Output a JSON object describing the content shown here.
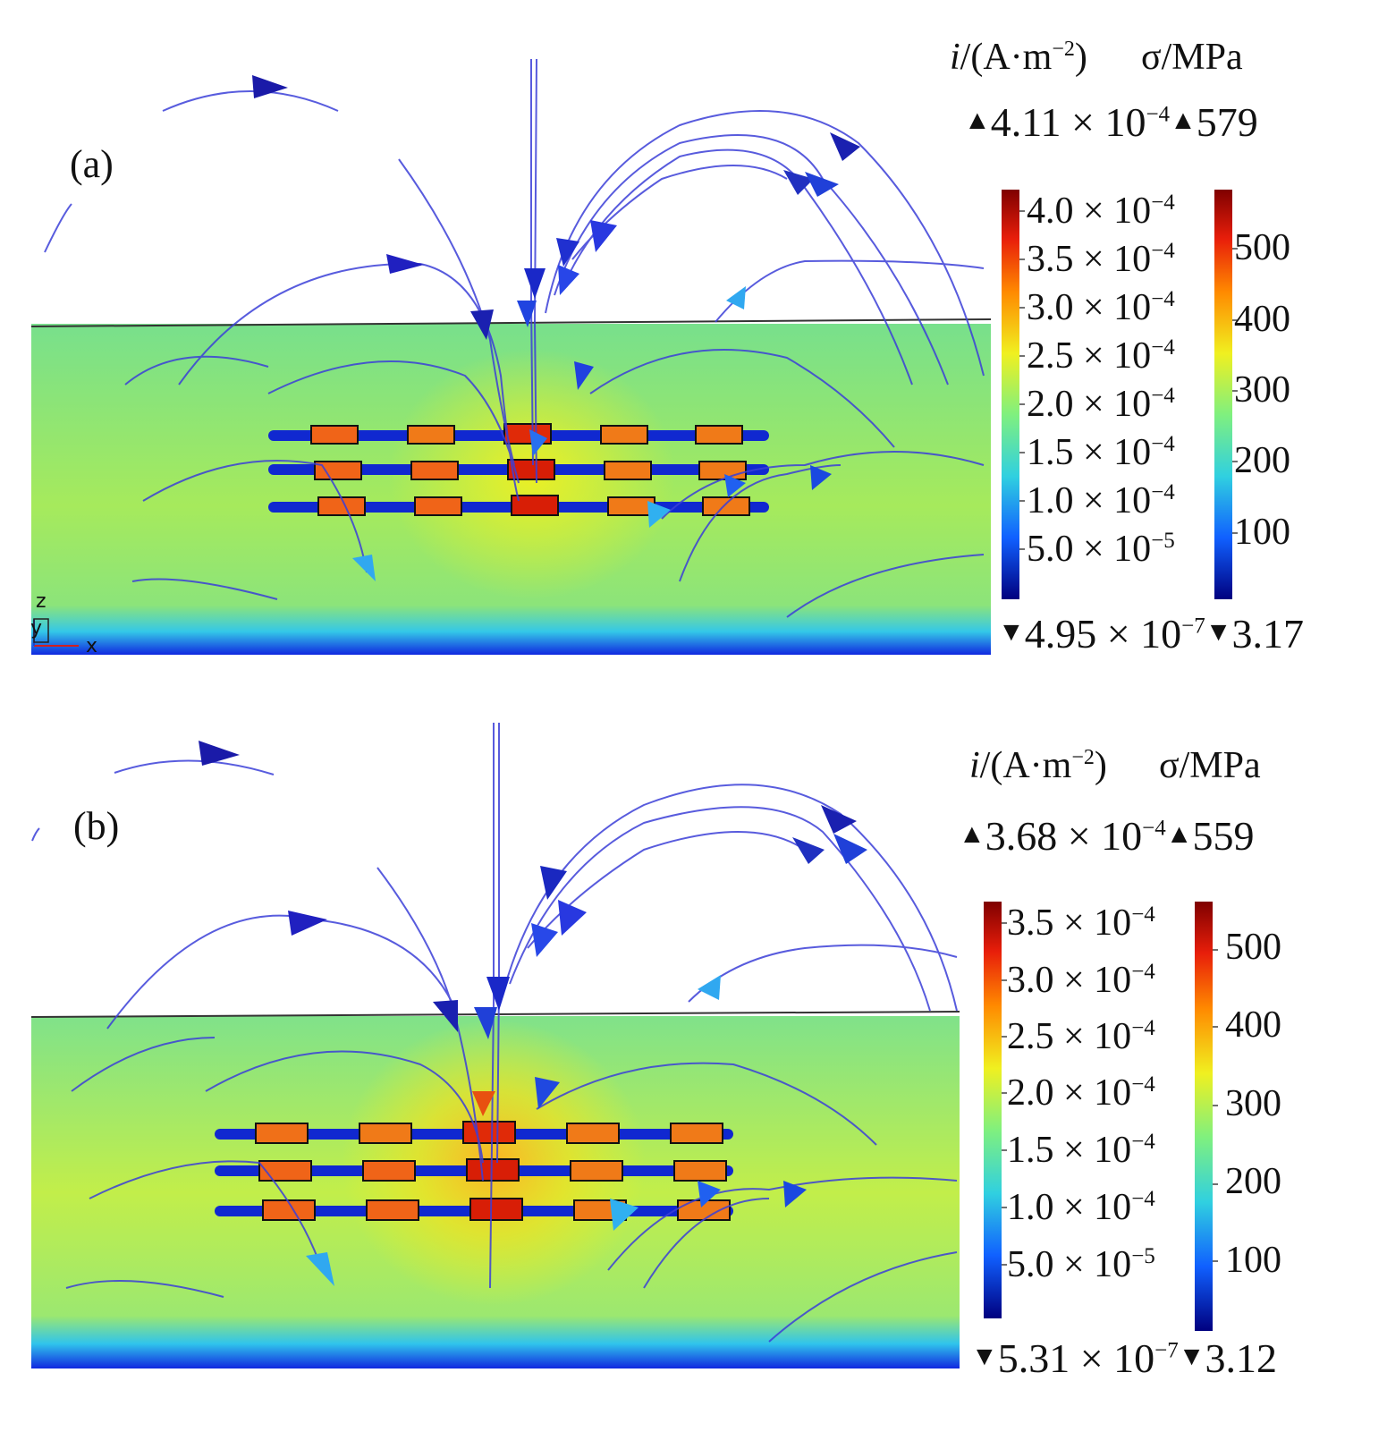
{
  "panels": [
    {
      "letter": "(a)",
      "current_density": {
        "symbol": "i",
        "unit": "/(A·m",
        "exp": "−2",
        "close": ")",
        "max_mantissa": "4.11",
        "max_exp": "−4",
        "min_mantissa": "4.95",
        "min_exp": "−7",
        "ticks": [
          {
            "m": "4.0",
            "e": "−4"
          },
          {
            "m": "3.5",
            "e": "−4"
          },
          {
            "m": "3.0",
            "e": "−4"
          },
          {
            "m": "2.5",
            "e": "−4"
          },
          {
            "m": "2.0",
            "e": "−4"
          },
          {
            "m": "1.5",
            "e": "−4"
          },
          {
            "m": "1.0",
            "e": "−4"
          },
          {
            "m": "5.0",
            "e": "−5"
          }
        ]
      },
      "stress": {
        "label": "σ/MPa",
        "max": "579",
        "min": "3.17",
        "ticks": [
          "500",
          "400",
          "300",
          "200",
          "100"
        ]
      },
      "axes": {
        "z": "z",
        "y": "y",
        "x": "x"
      }
    },
    {
      "letter": "(b)",
      "current_density": {
        "symbol": "i",
        "unit": "/(A·m",
        "exp": "−2",
        "close": ")",
        "max_mantissa": "3.68",
        "max_exp": "−4",
        "min_mantissa": "5.31",
        "min_exp": "−7",
        "ticks": [
          {
            "m": "3.5",
            "e": "−4"
          },
          {
            "m": "3.0",
            "e": "−4"
          },
          {
            "m": "2.5",
            "e": "−4"
          },
          {
            "m": "2.0",
            "e": "−4"
          },
          {
            "m": "1.5",
            "e": "−4"
          },
          {
            "m": "1.0",
            "e": "−4"
          },
          {
            "m": "5.0",
            "e": "−5"
          }
        ]
      },
      "stress": {
        "label": "σ/MPa",
        "max": "559",
        "min": "3.12",
        "ticks": [
          "500",
          "400",
          "300",
          "200",
          "100"
        ]
      }
    }
  ],
  "colors": {
    "field_green": "#7fe07a",
    "field_yellow": "#d8f03a",
    "streamline": "#3b3fd8",
    "colormap": [
      "#7f0000",
      "#e81e0a",
      "#ff8a00",
      "#f0f020",
      "#7ff07f",
      "#30d0e0",
      "#1060ff",
      "#00007f"
    ]
  },
  "icons": [
    "streamline-arrow-icon",
    "triangle-up-icon",
    "triangle-down-icon"
  ]
}
